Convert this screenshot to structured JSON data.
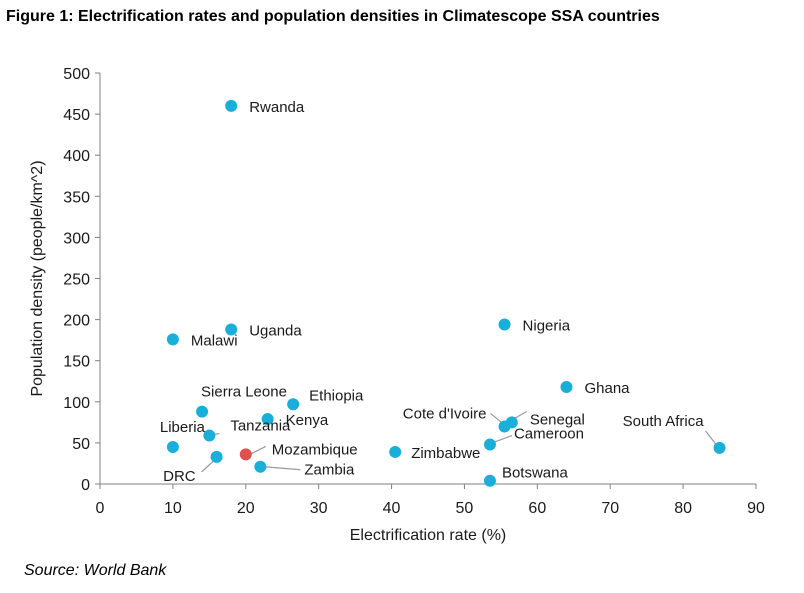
{
  "figure": {
    "title": "Figure 1: Electrification rates and population densities in Climatescope SSA countries",
    "source": "Source: World Bank"
  },
  "chart_data": {
    "type": "scatter",
    "xlabel": "Electrification rate (%)",
    "ylabel": "Population density (people/km^2)",
    "xlim": [
      0,
      90
    ],
    "ylim": [
      0,
      500
    ],
    "x_ticks": [
      0,
      10,
      20,
      30,
      40,
      50,
      60,
      70,
      80,
      90
    ],
    "y_ticks": [
      0,
      50,
      100,
      150,
      200,
      250,
      300,
      350,
      400,
      450,
      500
    ],
    "grid": false,
    "legend": "none",
    "colors": {
      "default": "#1aafd8",
      "highlight": "#e05050"
    },
    "points": [
      {
        "label": "Rwanda",
        "x": 18,
        "y": 460
      },
      {
        "label": "Uganda",
        "x": 18,
        "y": 188
      },
      {
        "label": "Malawi",
        "x": 10,
        "y": 176
      },
      {
        "label": "Nigeria",
        "x": 55.5,
        "y": 194
      },
      {
        "label": "Ghana",
        "x": 64,
        "y": 118
      },
      {
        "label": "Ethiopia",
        "x": 26.5,
        "y": 97
      },
      {
        "label": "Sierra Leone",
        "x": 14,
        "y": 88
      },
      {
        "label": "Kenya",
        "x": 23,
        "y": 79
      },
      {
        "label": "Liberia",
        "x": 10,
        "y": 45
      },
      {
        "label": "Tanzania",
        "x": 15,
        "y": 59
      },
      {
        "label": "DRC",
        "x": 16,
        "y": 33
      },
      {
        "label": "Mozambique",
        "x": 20,
        "y": 36,
        "highlight": true
      },
      {
        "label": "Zambia",
        "x": 22,
        "y": 21
      },
      {
        "label": "Zimbabwe",
        "x": 40.5,
        "y": 39
      },
      {
        "label": "Cote d'Ivoire",
        "x": 55.5,
        "y": 70
      },
      {
        "label": "Senegal",
        "x": 56.5,
        "y": 75
      },
      {
        "label": "Cameroon",
        "x": 53.5,
        "y": 48
      },
      {
        "label": "Botswana",
        "x": 53.5,
        "y": 4
      },
      {
        "label": "South Africa",
        "x": 85,
        "y": 44
      }
    ]
  }
}
